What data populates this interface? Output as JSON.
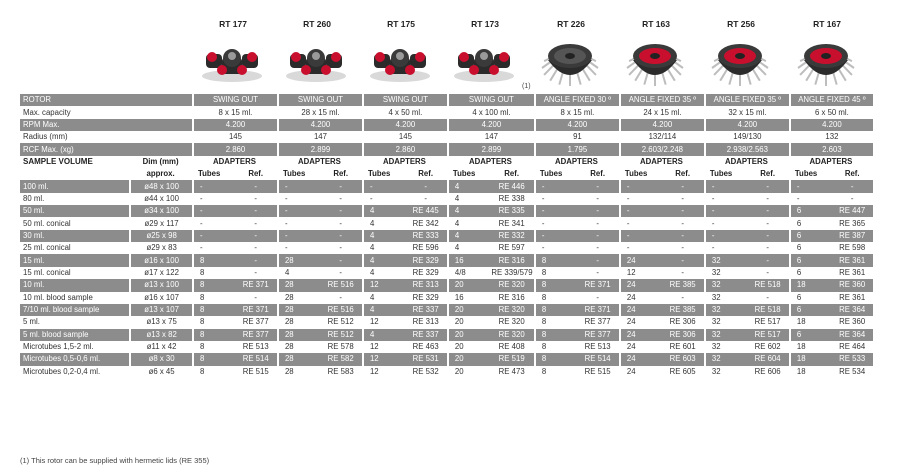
{
  "rotors": [
    {
      "model": "RT 177",
      "icon": "swing-rotor-4-bucket-icon"
    },
    {
      "model": "RT 260",
      "icon": "swing-rotor-4-bucket-icon"
    },
    {
      "model": "RT 175",
      "icon": "swing-rotor-4-bucket-icon"
    },
    {
      "model": "RT 173",
      "icon": "swing-rotor-4-bucket-icon"
    },
    {
      "model": "RT 226",
      "icon": "angle-rotor-icon"
    },
    {
      "model": "RT 163",
      "icon": "angle-rotor-icon"
    },
    {
      "model": "RT 256",
      "icon": "angle-rotor-icon"
    },
    {
      "model": "RT 167",
      "icon": "angle-rotor-icon"
    }
  ],
  "note_marker": "(1)",
  "spec_rows": [
    {
      "label": "ROTOR",
      "values": [
        "SWING OUT",
        "SWING OUT",
        "SWING OUT",
        "SWING OUT",
        "ANGLE FIXED 30 º",
        "ANGLE FIXED 35 º",
        "ANGLE FIXED 35 º",
        "ANGLE FIXED 45 º"
      ]
    },
    {
      "label": "Max. capacity",
      "values": [
        "8 x 15 ml.",
        "28 x 15 ml.",
        "4 x 50 ml.",
        "4 x 100 ml.",
        "8 x 15 ml.",
        "24 x 15 ml.",
        "32 x 15 ml.",
        "6 x 50 ml."
      ]
    },
    {
      "label": "RPM Max.",
      "values": [
        "4.200",
        "4.200",
        "4.200",
        "4.200",
        "4.200",
        "4.200",
        "4.200",
        "4.200"
      ]
    },
    {
      "label": "Radius (mm)",
      "values": [
        "145",
        "147",
        "145",
        "147",
        "91",
        "132/114",
        "149/130",
        "132"
      ]
    },
    {
      "label": "RCF Max. (xg)",
      "values": [
        "2.860",
        "2.899",
        "2.860",
        "2.899",
        "1.795",
        "2.603/2.248",
        "2.938/2.563",
        "2.603"
      ]
    }
  ],
  "header": {
    "sample_volume": "SAMPLE VOLUME",
    "dim_line1": "Dim (mm)",
    "dim_line2": "approx.",
    "adapters": "ADAPTERS",
    "tubes": "Tubes",
    "ref": "Ref."
  },
  "sample_rows": [
    {
      "label": "100 ml.",
      "dim": "ø48 x 100",
      "cells": [
        [
          "-",
          "-"
        ],
        [
          "-",
          "-"
        ],
        [
          "-",
          "-"
        ],
        [
          "4",
          "RE 446"
        ],
        [
          "-",
          "-"
        ],
        [
          "-",
          "-"
        ],
        [
          "-",
          "-"
        ],
        [
          "-",
          "-"
        ]
      ]
    },
    {
      "label": "80 ml.",
      "dim": "ø44 x 100",
      "cells": [
        [
          "-",
          "-"
        ],
        [
          "-",
          "-"
        ],
        [
          "-",
          "-"
        ],
        [
          "4",
          "RE 338"
        ],
        [
          "-",
          "-"
        ],
        [
          "-",
          "-"
        ],
        [
          "-",
          "-"
        ],
        [
          "-",
          "-"
        ]
      ]
    },
    {
      "label": "50 ml.",
      "dim": "ø34 x 100",
      "cells": [
        [
          "-",
          "-"
        ],
        [
          "-",
          "-"
        ],
        [
          "4",
          "RE 445"
        ],
        [
          "4",
          "RE 335"
        ],
        [
          "-",
          "-"
        ],
        [
          "-",
          "-"
        ],
        [
          "-",
          "-"
        ],
        [
          "6",
          "RE 447"
        ]
      ]
    },
    {
      "label": "50 ml. conical",
      "dim": "ø29 x 117",
      "cells": [
        [
          "-",
          "-"
        ],
        [
          "-",
          "-"
        ],
        [
          "4",
          "RE 342"
        ],
        [
          "4",
          "RE 341"
        ],
        [
          "-",
          "-"
        ],
        [
          "-",
          "-"
        ],
        [
          "-",
          "-"
        ],
        [
          "6",
          "RE 365"
        ]
      ]
    },
    {
      "label": "30 ml.",
      "dim": "ø25 x 98",
      "cells": [
        [
          "-",
          "-"
        ],
        [
          "-",
          "-"
        ],
        [
          "4",
          "RE 333"
        ],
        [
          "4",
          "RE 332"
        ],
        [
          "-",
          "-"
        ],
        [
          "-",
          "-"
        ],
        [
          "-",
          "-"
        ],
        [
          "6",
          "RE 387"
        ]
      ]
    },
    {
      "label": "25 ml. conical",
      "dim": "ø29 x 83",
      "cells": [
        [
          "-",
          "-"
        ],
        [
          "-",
          "-"
        ],
        [
          "4",
          "RE 596"
        ],
        [
          "4",
          "RE 597"
        ],
        [
          "-",
          "-"
        ],
        [
          "-",
          "-"
        ],
        [
          "-",
          "-"
        ],
        [
          "6",
          "RE 598"
        ]
      ]
    },
    {
      "label": "15 ml.",
      "dim": "ø16 x 100",
      "cells": [
        [
          "8",
          "-"
        ],
        [
          "28",
          "-"
        ],
        [
          "4",
          "RE 329"
        ],
        [
          "16",
          "RE 316"
        ],
        [
          "8",
          "-"
        ],
        [
          "24",
          "-"
        ],
        [
          "32",
          "-"
        ],
        [
          "6",
          "RE 361"
        ]
      ]
    },
    {
      "label": "15 ml. conical",
      "dim": "ø17 x 122",
      "cells": [
        [
          "8",
          "-"
        ],
        [
          "4",
          "-"
        ],
        [
          "4",
          "RE 329"
        ],
        [
          "4/8",
          "RE 339/579"
        ],
        [
          "8",
          "-"
        ],
        [
          "12",
          "-"
        ],
        [
          "32",
          "-"
        ],
        [
          "6",
          "RE 361"
        ]
      ]
    },
    {
      "label": "10 ml.",
      "dim": "ø13 x 100",
      "cells": [
        [
          "8",
          "RE 371"
        ],
        [
          "28",
          "RE 516"
        ],
        [
          "12",
          "RE 313"
        ],
        [
          "20",
          "RE 320"
        ],
        [
          "8",
          "RE 371"
        ],
        [
          "24",
          "RE 385"
        ],
        [
          "32",
          "RE 518"
        ],
        [
          "18",
          "RE 360"
        ]
      ]
    },
    {
      "label": "10 ml. blood sample",
      "dim": "ø16 x 107",
      "cells": [
        [
          "8",
          "-"
        ],
        [
          "28",
          "-"
        ],
        [
          "4",
          "RE 329"
        ],
        [
          "16",
          "RE 316"
        ],
        [
          "8",
          "-"
        ],
        [
          "24",
          "-"
        ],
        [
          "32",
          "-"
        ],
        [
          "6",
          "RE 361"
        ]
      ]
    },
    {
      "label": "7/10 ml. blood sample",
      "dim": "ø13 x 107",
      "cells": [
        [
          "8",
          "RE 371"
        ],
        [
          "28",
          "RE 516"
        ],
        [
          "4",
          "RE 337"
        ],
        [
          "20",
          "RE 320"
        ],
        [
          "8",
          "RE 371"
        ],
        [
          "24",
          "RE 385"
        ],
        [
          "32",
          "RE 518"
        ],
        [
          "6",
          "RE 364"
        ]
      ]
    },
    {
      "label": "5 ml.",
      "dim": "ø13 x 75",
      "cells": [
        [
          "8",
          "RE 377"
        ],
        [
          "28",
          "RE 512"
        ],
        [
          "12",
          "RE 313"
        ],
        [
          "20",
          "RE 320"
        ],
        [
          "8",
          "RE 377"
        ],
        [
          "24",
          "RE 306"
        ],
        [
          "32",
          "RE 517"
        ],
        [
          "18",
          "RE 360"
        ]
      ]
    },
    {
      "label": "5 ml. blood sample",
      "dim": "ø13 x 82",
      "cells": [
        [
          "8",
          "RE 377"
        ],
        [
          "28",
          "RE 512"
        ],
        [
          "4",
          "RE 337"
        ],
        [
          "20",
          "RE 320"
        ],
        [
          "8",
          "RE 377"
        ],
        [
          "24",
          "RE 306"
        ],
        [
          "32",
          "RE 517"
        ],
        [
          "6",
          "RE 364"
        ]
      ]
    },
    {
      "label": "Microtubes 1,5-2 ml.",
      "dim": "ø11 x 42",
      "cells": [
        [
          "8",
          "RE 513"
        ],
        [
          "28",
          "RE 578"
        ],
        [
          "12",
          "RE 463"
        ],
        [
          "20",
          "RE 408"
        ],
        [
          "8",
          "RE 513"
        ],
        [
          "24",
          "RE 601"
        ],
        [
          "32",
          "RE 602"
        ],
        [
          "18",
          "RE 464"
        ]
      ]
    },
    {
      "label": "Microtubes 0,5-0,6 ml.",
      "dim": "ø8 x 30",
      "cells": [
        [
          "8",
          "RE 514"
        ],
        [
          "28",
          "RE 582"
        ],
        [
          "12",
          "RE 531"
        ],
        [
          "20",
          "RE 519"
        ],
        [
          "8",
          "RE 514"
        ],
        [
          "24",
          "RE 603"
        ],
        [
          "32",
          "RE 604"
        ],
        [
          "18",
          "RE 533"
        ]
      ]
    },
    {
      "label": "Microtubes 0,2-0,4 ml.",
      "dim": "ø6 x 45",
      "cells": [
        [
          "8",
          "RE 515"
        ],
        [
          "28",
          "RE 583"
        ],
        [
          "12",
          "RE 532"
        ],
        [
          "20",
          "RE 473"
        ],
        [
          "8",
          "RE 515"
        ],
        [
          "24",
          "RE 605"
        ],
        [
          "32",
          "RE 606"
        ],
        [
          "18",
          "RE 534"
        ]
      ]
    }
  ],
  "footnote": "(1) This rotor can be supplied with hermetic lids (RE 355)",
  "colors": {
    "band": "#8c8c8c",
    "rotor_red": "#c8102e",
    "rotor_body": "#2b2b2b"
  }
}
